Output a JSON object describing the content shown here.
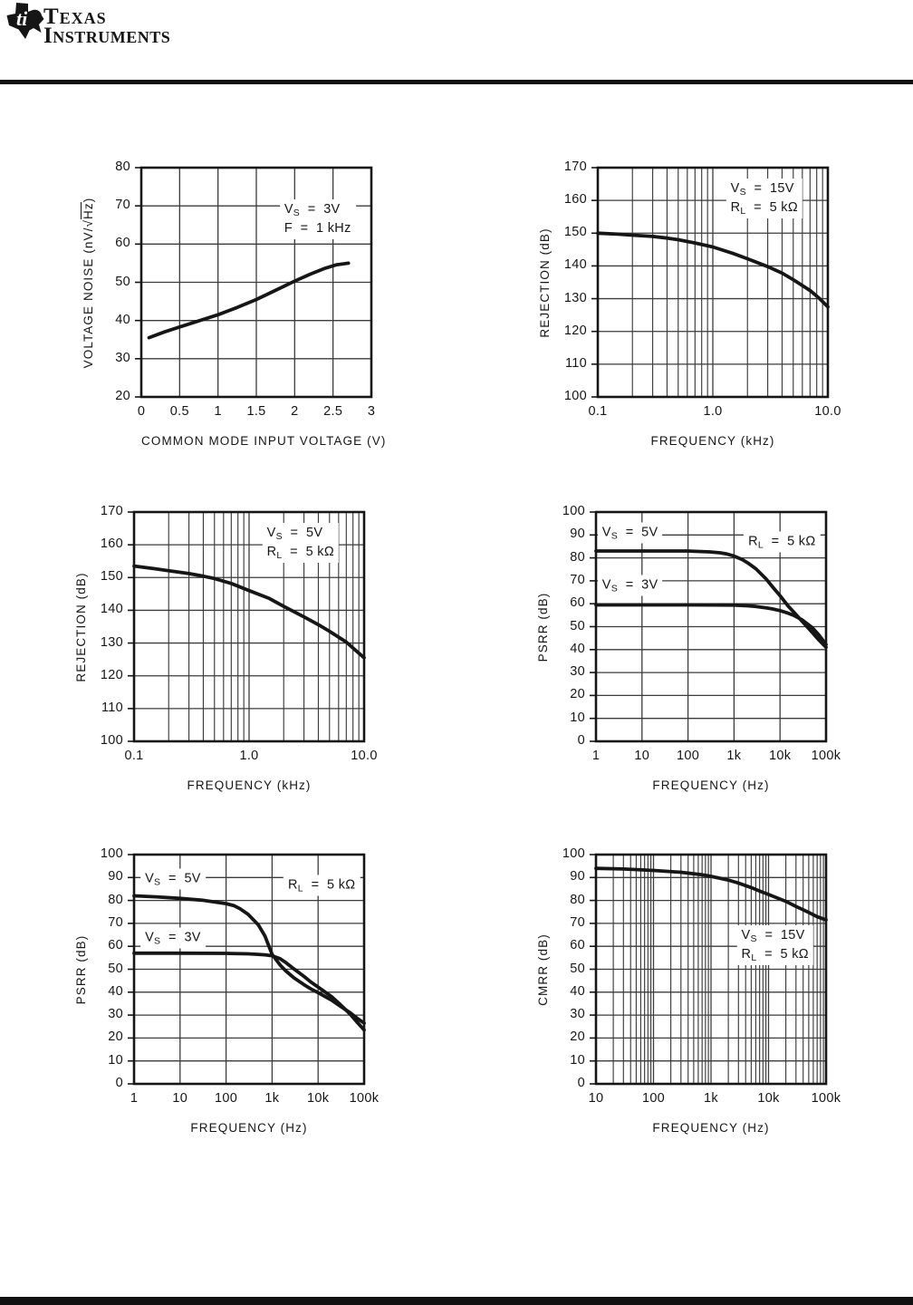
{
  "header": {
    "brand_line1": "Texas",
    "brand_line2": "Instruments",
    "logo": "ti-texas-logo"
  },
  "chart_data": [
    {
      "id": "voltage-noise-vs-common-mode-voltage",
      "type": "line",
      "xscale": "linear",
      "xlabel": "COMMON MODE INPUT VOLTAGE (V)",
      "ylabel": {
        "pre": "VOLTAGE NOISE (nV/",
        "sqrt": "Hz",
        "post": ")"
      },
      "xlim": [
        0,
        3
      ],
      "ylim": [
        20,
        80
      ],
      "xticks": [
        {
          "label": "0",
          "v": 0
        },
        {
          "label": "0.5",
          "v": 0.5
        },
        {
          "label": "1",
          "v": 1
        },
        {
          "label": "1.5",
          "v": 1.5
        },
        {
          "label": "2",
          "v": 2
        },
        {
          "label": "2.5",
          "v": 2.5
        },
        {
          "label": "3",
          "v": 3
        }
      ],
      "yticks": [
        20,
        30,
        40,
        50,
        60,
        70,
        80
      ],
      "xminor": false,
      "grid": true,
      "series": [
        {
          "name": "VS = 3V, F = 1 kHz",
          "points": [
            [
              0.1,
              35.5
            ],
            [
              0.3,
              37.0
            ],
            [
              0.5,
              38.3
            ],
            [
              0.75,
              39.9
            ],
            [
              1.0,
              41.5
            ],
            [
              1.25,
              43.4
            ],
            [
              1.5,
              45.5
            ],
            [
              1.75,
              47.9
            ],
            [
              2.0,
              50.3
            ],
            [
              2.2,
              52.1
            ],
            [
              2.4,
              53.7
            ],
            [
              2.55,
              54.6
            ],
            [
              2.7,
              55.0
            ]
          ]
        }
      ],
      "annotations": [
        {
          "x": 2.3,
          "y": 66.5,
          "lines": [
            [
              {
                "t": "V"
              },
              {
                "s": "S"
              },
              {
                "t": "  =  3V"
              }
            ],
            [
              {
                "t": "F  =  1 kHz"
              }
            ]
          ]
        }
      ]
    },
    {
      "id": "rejection-vs-frequency-15v",
      "type": "line",
      "xscale": "log",
      "xlabel": "FREQUENCY (kHz)",
      "ylabel": "REJECTION (dB)",
      "xlim": [
        0.1,
        10
      ],
      "ylim": [
        100,
        170
      ],
      "xticks": [
        {
          "label": "0.1",
          "v": 0.1
        },
        {
          "label": "1.0",
          "v": 1
        },
        {
          "label": "10.0",
          "v": 10
        }
      ],
      "yticks": [
        100,
        110,
        120,
        130,
        140,
        150,
        160,
        170
      ],
      "xminor": true,
      "grid": true,
      "series": [
        {
          "name": "VS = 15V, RL = 5 kOhm",
          "points": [
            [
              0.1,
              150
            ],
            [
              0.15,
              149.7
            ],
            [
              0.2,
              149.4
            ],
            [
              0.3,
              149.0
            ],
            [
              0.4,
              148.5
            ],
            [
              0.5,
              148.0
            ],
            [
              0.7,
              147.0
            ],
            [
              1.0,
              145.8
            ],
            [
              1.5,
              143.8
            ],
            [
              2,
              142.2
            ],
            [
              3,
              139.8
            ],
            [
              4,
              137.8
            ],
            [
              5,
              135.8
            ],
            [
              7,
              132.5
            ],
            [
              8.5,
              130.0
            ],
            [
              10,
              127.5
            ]
          ]
        }
      ],
      "annotations": [
        {
          "x": 2.8,
          "y": 160.5,
          "lines": [
            [
              {
                "t": "V"
              },
              {
                "s": "S"
              },
              {
                "t": "  =  15V"
              }
            ],
            [
              {
                "t": "R"
              },
              {
                "s": "L"
              },
              {
                "t": "  =  5 kΩ"
              }
            ]
          ]
        }
      ]
    },
    {
      "id": "rejection-vs-frequency-5v",
      "type": "line",
      "xscale": "log",
      "xlabel": "FREQUENCY (kHz)",
      "ylabel": "REJECTION (dB)",
      "xlim": [
        0.1,
        10
      ],
      "ylim": [
        100,
        170
      ],
      "xticks": [
        {
          "label": "0.1",
          "v": 0.1
        },
        {
          "label": "1.0",
          "v": 1
        },
        {
          "label": "10.0",
          "v": 10
        }
      ],
      "yticks": [
        100,
        110,
        120,
        130,
        140,
        150,
        160,
        170
      ],
      "xminor": true,
      "grid": true,
      "series": [
        {
          "name": "VS = 5V, RL = 5 kOhm",
          "points": [
            [
              0.1,
              153.5
            ],
            [
              0.15,
              152.7
            ],
            [
              0.2,
              152.1
            ],
            [
              0.3,
              151.2
            ],
            [
              0.4,
              150.4
            ],
            [
              0.5,
              149.7
            ],
            [
              0.7,
              148.2
            ],
            [
              1.0,
              146.0
            ],
            [
              1.5,
              143.6
            ],
            [
              2,
              141.2
            ],
            [
              3,
              138.0
            ],
            [
              4,
              135.6
            ],
            [
              5,
              133.6
            ],
            [
              7,
              130.3
            ],
            [
              8.5,
              127.7
            ],
            [
              10,
              125.5
            ]
          ]
        }
      ],
      "annotations": [
        {
          "x": 2.8,
          "y": 160.5,
          "lines": [
            [
              {
                "t": "V"
              },
              {
                "s": "S"
              },
              {
                "t": "  =  5V"
              }
            ],
            [
              {
                "t": "R"
              },
              {
                "s": "L"
              },
              {
                "t": "  =  5 kΩ"
              }
            ]
          ]
        }
      ]
    },
    {
      "id": "psrr-vs-frequency-a",
      "type": "line",
      "xscale": "log",
      "xlabel": "FREQUENCY (Hz)",
      "ylabel": "PSRR (dB)",
      "xlim": [
        1,
        100000
      ],
      "ylim": [
        0,
        100
      ],
      "xticks": [
        {
          "label": "1",
          "v": 1
        },
        {
          "label": "10",
          "v": 10
        },
        {
          "label": "100",
          "v": 100
        },
        {
          "label": "1k",
          "v": 1000
        },
        {
          "label": "10k",
          "v": 10000
        },
        {
          "label": "100k",
          "v": 100000
        }
      ],
      "yticks": [
        0,
        10,
        20,
        30,
        40,
        50,
        60,
        70,
        80,
        90,
        100
      ],
      "xminor": false,
      "grid": true,
      "series": [
        {
          "name": "VS = 5V",
          "points": [
            [
              1,
              83
            ],
            [
              3,
              83
            ],
            [
              10,
              83
            ],
            [
              30,
              83
            ],
            [
              100,
              83
            ],
            [
              300,
              82.6
            ],
            [
              500,
              82.2
            ],
            [
              700,
              81.7
            ],
            [
              1000,
              80.8
            ],
            [
              1500,
              79.3
            ],
            [
              2000,
              77.8
            ],
            [
              3000,
              75.2
            ],
            [
              5000,
              70.8
            ],
            [
              7000,
              67.2
            ],
            [
              10000,
              63.5
            ],
            [
              15000,
              59.0
            ],
            [
              20000,
              56.3
            ],
            [
              30000,
              52.4
            ],
            [
              50000,
              47.5
            ],
            [
              70000,
              44.2
            ],
            [
              100000,
              41.0
            ]
          ]
        },
        {
          "name": "VS = 3V",
          "points": [
            [
              1,
              59.5
            ],
            [
              10,
              59.5
            ],
            [
              100,
              59.5
            ],
            [
              1000,
              59.4
            ],
            [
              2000,
              59.1
            ],
            [
              3000,
              58.8
            ],
            [
              5000,
              58.2
            ],
            [
              7000,
              57.7
            ],
            [
              10000,
              57.0
            ],
            [
              15000,
              55.9
            ],
            [
              20000,
              54.9
            ],
            [
              30000,
              53.0
            ],
            [
              50000,
              49.6
            ],
            [
              70000,
              46.4
            ],
            [
              100000,
              42.2
            ]
          ]
        }
      ],
      "annotations": [
        {
          "x": 5.5,
          "y": 91,
          "lines": [
            [
              {
                "t": "V"
              },
              {
                "s": "S"
              },
              {
                "t": "  =  5V"
              }
            ]
          ]
        },
        {
          "x": 11000,
          "y": 87,
          "lines": [
            [
              {
                "t": "R"
              },
              {
                "s": "L"
              },
              {
                "t": "  =  5 kΩ"
              }
            ]
          ]
        },
        {
          "x": 5.5,
          "y": 68,
          "lines": [
            [
              {
                "t": "V"
              },
              {
                "s": "S"
              },
              {
                "t": "  =  3V"
              }
            ]
          ]
        }
      ]
    },
    {
      "id": "psrr-vs-frequency-b",
      "type": "line",
      "xscale": "log",
      "xlabel": "FREQUENCY (Hz)",
      "ylabel": "PSRR (dB)",
      "xlim": [
        1,
        100000
      ],
      "ylim": [
        0,
        100
      ],
      "xticks": [
        {
          "label": "1",
          "v": 1
        },
        {
          "label": "10",
          "v": 10
        },
        {
          "label": "100",
          "v": 100
        },
        {
          "label": "1k",
          "v": 1000
        },
        {
          "label": "10k",
          "v": 10000
        },
        {
          "label": "100k",
          "v": 100000
        }
      ],
      "yticks": [
        0,
        10,
        20,
        30,
        40,
        50,
        60,
        70,
        80,
        90,
        100
      ],
      "xminor": false,
      "grid": true,
      "series": [
        {
          "name": "VS = 5V",
          "points": [
            [
              1,
              82
            ],
            [
              3,
              81.6
            ],
            [
              10,
              80.9
            ],
            [
              30,
              80.1
            ],
            [
              100,
              78.6
            ],
            [
              150,
              77.7
            ],
            [
              200,
              76.4
            ],
            [
              300,
              74.0
            ],
            [
              500,
              69.4
            ],
            [
              700,
              64.5
            ],
            [
              1000,
              56.5
            ],
            [
              1500,
              51.8
            ],
            [
              2000,
              49.2
            ],
            [
              3000,
              46.2
            ],
            [
              5000,
              43.2
            ],
            [
              7000,
              41.4
            ],
            [
              10000,
              39.8
            ],
            [
              20000,
              36.4
            ],
            [
              30000,
              34.0
            ],
            [
              50000,
              31.0
            ],
            [
              70000,
              28.7
            ],
            [
              100000,
              26.5
            ]
          ]
        },
        {
          "name": "VS = 3V",
          "points": [
            [
              1,
              57
            ],
            [
              10,
              57
            ],
            [
              100,
              56.9
            ],
            [
              300,
              56.7
            ],
            [
              500,
              56.5
            ],
            [
              700,
              56.3
            ],
            [
              1000,
              55.9
            ],
            [
              1500,
              54.6
            ],
            [
              2000,
              52.9
            ],
            [
              3000,
              50.1
            ],
            [
              5000,
              46.8
            ],
            [
              7000,
              44.4
            ],
            [
              10000,
              42.2
            ],
            [
              20000,
              37.9
            ],
            [
              30000,
              34.7
            ],
            [
              50000,
              30.4
            ],
            [
              70000,
              27.0
            ],
            [
              100000,
              23.5
            ]
          ]
        }
      ],
      "annotations": [
        {
          "x": 7,
          "y": 89.5,
          "lines": [
            [
              {
                "t": "V"
              },
              {
                "s": "S"
              },
              {
                "t": "  =  5V"
              }
            ]
          ]
        },
        {
          "x": 12000,
          "y": 86.5,
          "lines": [
            [
              {
                "t": "R"
              },
              {
                "s": "L"
              },
              {
                "t": "  =  5 kΩ"
              }
            ]
          ]
        },
        {
          "x": 7,
          "y": 63.5,
          "lines": [
            [
              {
                "t": "V"
              },
              {
                "s": "S"
              },
              {
                "t": "  =  3V"
              }
            ]
          ]
        }
      ]
    },
    {
      "id": "cmrr-vs-frequency",
      "type": "line",
      "xscale": "log",
      "xlabel": "FREQUENCY (Hz)",
      "ylabel": "CMRR (dB)",
      "xlim": [
        10,
        100000
      ],
      "ylim": [
        0,
        100
      ],
      "xticks": [
        {
          "label": "10",
          "v": 10
        },
        {
          "label": "100",
          "v": 100
        },
        {
          "label": "1k",
          "v": 1000
        },
        {
          "label": "10k",
          "v": 10000
        },
        {
          "label": "100k",
          "v": 100000
        }
      ],
      "yticks": [
        0,
        10,
        20,
        30,
        40,
        50,
        60,
        70,
        80,
        90,
        100
      ],
      "xminor": true,
      "grid": true,
      "series": [
        {
          "name": "VS = 15V, RL = 5 kOhm",
          "points": [
            [
              10,
              94
            ],
            [
              30,
              93.7
            ],
            [
              100,
              93.1
            ],
            [
              300,
              92.3
            ],
            [
              700,
              91.2
            ],
            [
              1000,
              90.5
            ],
            [
              2000,
              88.9
            ],
            [
              3000,
              87.6
            ],
            [
              5000,
              85.6
            ],
            [
              7000,
              84.1
            ],
            [
              10000,
              82.6
            ],
            [
              20000,
              79.6
            ],
            [
              30000,
              77.4
            ],
            [
              50000,
              74.8
            ],
            [
              70000,
              72.9
            ],
            [
              100000,
              71.5
            ]
          ]
        }
      ],
      "annotations": [
        {
          "x": 13000,
          "y": 60.5,
          "lines": [
            [
              {
                "t": "V"
              },
              {
                "s": "S"
              },
              {
                "t": "  =  15V"
              }
            ],
            [
              {
                "t": "R"
              },
              {
                "s": "L"
              },
              {
                "t": "  =  5 kΩ"
              }
            ]
          ]
        }
      ]
    }
  ],
  "colors": {
    "ink": "#161616",
    "grid": "#3c3c3c",
    "background": "#ffffff"
  }
}
